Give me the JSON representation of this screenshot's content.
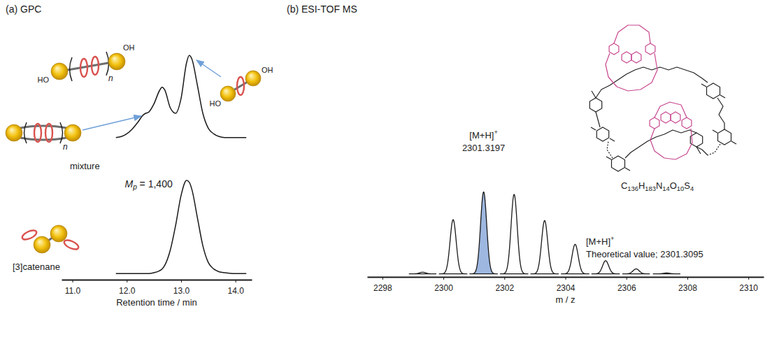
{
  "chart_data": [
    {
      "type": "line",
      "title": "(a) GPC",
      "x_label": "Retention time / min",
      "x": [
        11.8,
        11.9,
        12.0,
        12.1,
        12.2,
        12.3,
        12.35,
        12.4,
        12.5,
        12.6,
        12.65,
        12.7,
        12.8,
        12.9,
        13.0,
        13.1,
        13.15,
        13.2,
        13.3,
        13.4,
        13.5,
        13.6,
        13.7,
        13.8,
        14.0,
        14.2
      ],
      "series": [
        {
          "name": "mixture",
          "color": "#1a1a1a",
          "values": [
            1.46,
            1.47,
            1.5,
            1.55,
            1.62,
            1.7,
            1.72,
            1.73,
            1.82,
            1.96,
            2.0,
            1.97,
            1.78,
            1.72,
            1.88,
            2.26,
            2.34,
            2.3,
            2.02,
            1.72,
            1.56,
            1.5,
            1.47,
            1.46,
            1.46,
            1.46
          ]
        },
        {
          "name": "[3]catenane",
          "color": "#1a1a1a",
          "values": [
            0,
            0,
            0,
            0,
            0,
            0,
            0,
            0,
            0.01,
            0.03,
            0.05,
            0.09,
            0.25,
            0.52,
            0.84,
            1.0,
            0.98,
            0.9,
            0.6,
            0.3,
            0.12,
            0.05,
            0.02,
            0.01,
            0,
            0
          ]
        }
      ],
      "xlim": [
        10.8,
        14.3
      ],
      "xticks": [
        {
          "value": 11,
          "label": "11.0"
        },
        {
          "value": 12,
          "label": "12.0"
        },
        {
          "value": 13,
          "label": "13.0"
        },
        {
          "value": 14,
          "label": "14.0"
        }
      ],
      "ylim": [
        -0.05,
        2.5
      ],
      "tick_labels": "x",
      "annotations": [
        "Mp = 1,400"
      ],
      "icons": {
        "linear_oligomer": {
          "left": "HO",
          "right": "OH",
          "repeat": "n"
        },
        "cyclic_oligomer": {
          "repeat": "n"
        },
        "linear_dimer": {
          "left": "HO",
          "right": "OH"
        }
      }
    },
    {
      "type": "peaks",
      "title": "(b) ESI-TOF MS",
      "x_label": "m / z",
      "x": [
        2299.32,
        2300.32,
        2301.32,
        2302.32,
        2303.32,
        2304.32,
        2305.32,
        2306.32,
        2307.32
      ],
      "values": [
        2,
        66,
        100,
        97,
        65,
        36,
        16,
        6,
        1
      ],
      "color": "#1a1a1a",
      "colors": [
        "#ffffff",
        "#ffffff",
        "#9db7e0",
        "#ffffff",
        "#ffffff",
        "#ffffff",
        "#ffffff",
        "#ffffff",
        "#ffffff"
      ],
      "xlim": [
        2297.5,
        2310.5
      ],
      "xticks": [
        2298,
        2300,
        2302,
        2304,
        2306,
        2308,
        2310
      ],
      "ylim": [
        -2,
        105
      ],
      "tick_labels": "x",
      "annotations": [
        "[M+H]+",
        "2301.3197",
        "[M+H]+",
        "Theoretical value; 2301.3095",
        "C136H183N14O10S4"
      ]
    }
  ]
}
